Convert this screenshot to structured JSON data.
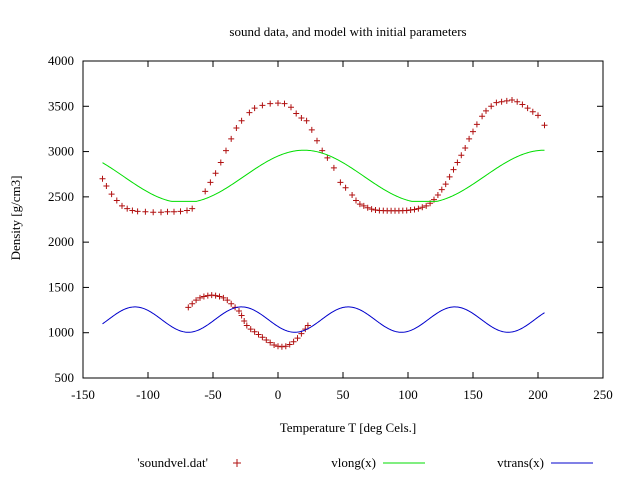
{
  "chart_data": {
    "type": "scatter+line",
    "title": "sound data, and model with initial parameters",
    "xlabel": "Temperature T  [deg Cels.]",
    "ylabel": "Density [g/cm3]",
    "xlim": [
      -150,
      250
    ],
    "ylim": [
      500,
      4000
    ],
    "xticks": [
      -150,
      -100,
      -50,
      0,
      50,
      100,
      150,
      200,
      250
    ],
    "yticks": [
      500,
      1000,
      1500,
      2000,
      2500,
      3000,
      3500,
      4000
    ],
    "grid": false,
    "legend_position": "bottom",
    "series": [
      {
        "name": "'soundvel.dat'",
        "kind": "points",
        "marker": "plus",
        "color": "#b01010",
        "points": [
          [
            -135,
            2700
          ],
          [
            -132,
            2620
          ],
          [
            -128,
            2530
          ],
          [
            -124,
            2460
          ],
          [
            -120,
            2400
          ],
          [
            -116,
            2370
          ],
          [
            -112,
            2350
          ],
          [
            -108,
            2340
          ],
          [
            -102,
            2335
          ],
          [
            -96,
            2330
          ],
          [
            -90,
            2330
          ],
          [
            -85,
            2335
          ],
          [
            -80,
            2335
          ],
          [
            -75,
            2340
          ],
          [
            -70,
            2350
          ],
          [
            -66,
            2370
          ],
          [
            -56,
            2560
          ],
          [
            -52,
            2660
          ],
          [
            -48,
            2760
          ],
          [
            -44,
            2880
          ],
          [
            -40,
            3010
          ],
          [
            -36,
            3140
          ],
          [
            -32,
            3260
          ],
          [
            -28,
            3340
          ],
          [
            -22,
            3430
          ],
          [
            -18,
            3480
          ],
          [
            -12,
            3510
          ],
          [
            -6,
            3530
          ],
          [
            0,
            3535
          ],
          [
            5,
            3530
          ],
          [
            10,
            3490
          ],
          [
            14,
            3420
          ],
          [
            18,
            3370
          ],
          [
            22,
            3340
          ],
          [
            26,
            3240
          ],
          [
            30,
            3120
          ],
          [
            34,
            3010
          ],
          [
            38,
            2930
          ],
          [
            43,
            2820
          ],
          [
            48,
            2660
          ],
          [
            52,
            2600
          ],
          [
            57,
            2520
          ],
          [
            60,
            2460
          ],
          [
            63,
            2420
          ],
          [
            66,
            2400
          ],
          [
            69,
            2380
          ],
          [
            72,
            2365
          ],
          [
            75,
            2355
          ],
          [
            78,
            2350
          ],
          [
            81,
            2348
          ],
          [
            84,
            2347
          ],
          [
            87,
            2346
          ],
          [
            90,
            2346
          ],
          [
            93,
            2347
          ],
          [
            96,
            2348
          ],
          [
            99,
            2350
          ],
          [
            102,
            2355
          ],
          [
            105,
            2360
          ],
          [
            108,
            2370
          ],
          [
            111,
            2385
          ],
          [
            114,
            2400
          ],
          [
            117,
            2430
          ],
          [
            120,
            2470
          ],
          [
            123,
            2520
          ],
          [
            126,
            2580
          ],
          [
            129,
            2640
          ],
          [
            132,
            2720
          ],
          [
            135,
            2800
          ],
          [
            138,
            2880
          ],
          [
            141,
            2960
          ],
          [
            144,
            3040
          ],
          [
            147,
            3140
          ],
          [
            150,
            3220
          ],
          [
            153,
            3300
          ],
          [
            157,
            3390
          ],
          [
            160,
            3450
          ],
          [
            164,
            3500
          ],
          [
            168,
            3540
          ],
          [
            172,
            3550
          ],
          [
            176,
            3560
          ],
          [
            180,
            3570
          ],
          [
            184,
            3550
          ],
          [
            188,
            3520
          ],
          [
            192,
            3480
          ],
          [
            196,
            3440
          ],
          [
            200,
            3400
          ],
          [
            205,
            3290
          ],
          [
            -69,
            1280
          ],
          [
            -66,
            1320
          ],
          [
            -63,
            1360
          ],
          [
            -60,
            1385
          ],
          [
            -57,
            1400
          ],
          [
            -54,
            1410
          ],
          [
            -51,
            1415
          ],
          [
            -48,
            1410
          ],
          [
            -45,
            1400
          ],
          [
            -42,
            1385
          ],
          [
            -39,
            1360
          ],
          [
            -36,
            1320
          ],
          [
            -33,
            1280
          ],
          [
            -30,
            1240
          ],
          [
            -28,
            1190
          ],
          [
            -26,
            1130
          ],
          [
            -24,
            1080
          ],
          [
            -21,
            1040
          ],
          [
            -18,
            1010
          ],
          [
            -15,
            980
          ],
          [
            -12,
            950
          ],
          [
            -9,
            920
          ],
          [
            -6,
            890
          ],
          [
            -3,
            865
          ],
          [
            0,
            850
          ],
          [
            3,
            845
          ],
          [
            6,
            850
          ],
          [
            9,
            870
          ],
          [
            12,
            900
          ],
          [
            15,
            940
          ],
          [
            18,
            990
          ],
          [
            21,
            1040
          ],
          [
            23,
            1080
          ]
        ]
      },
      {
        "name": "vlong(x)",
        "kind": "function",
        "color": "#00dd00",
        "formula": "vlong",
        "x_range": [
          -135,
          205
        ]
      },
      {
        "name": "vtrans(x)",
        "kind": "function",
        "color": "#0000cc",
        "formula": "vtrans",
        "x_range": [
          -135,
          205
        ]
      }
    ]
  }
}
